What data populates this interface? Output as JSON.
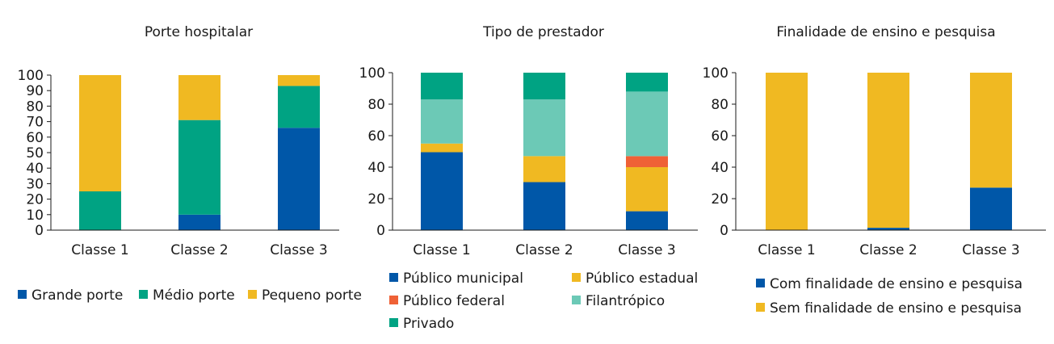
{
  "colors": {
    "grande": "#0057a8",
    "medio": "#00a383",
    "pequeno": "#f0b922",
    "municipal": "#0057a8",
    "estadual": "#f0b922",
    "federal": "#ef6136",
    "filantropico": "#6cc9b6",
    "privado": "#00a383",
    "com_ensino": "#0057a8",
    "sem_ensino": "#f0b922"
  },
  "chart_data": [
    {
      "type": "bar",
      "stacked": true,
      "title": "Porte hospitalar",
      "categories": [
        "Classe 1",
        "Classe 2",
        "Classe 3"
      ],
      "ylim": [
        0,
        100
      ],
      "yticks": [
        "0",
        "10",
        "20",
        "30",
        "40",
        "50",
        "60",
        "70",
        "80",
        "90",
        "100"
      ],
      "legend_position": "bottom",
      "series": [
        {
          "name": "Grande porte",
          "color_key": "grande",
          "values": [
            0,
            10,
            66
          ]
        },
        {
          "name": "Médio porte",
          "color_key": "medio",
          "values": [
            25,
            61,
            27
          ]
        },
        {
          "name": "Pequeno porte",
          "color_key": "pequeno",
          "values": [
            75,
            29,
            7
          ]
        }
      ]
    },
    {
      "type": "bar",
      "stacked": true,
      "title": "Tipo de prestador",
      "categories": [
        "Classe 1",
        "Classe 2",
        "Classe 3"
      ],
      "ylim": [
        0,
        100
      ],
      "yticks": [
        "0",
        "20",
        "40",
        "60",
        "80",
        "100"
      ],
      "legend_position": "bottom",
      "series": [
        {
          "name": "Público municipal",
          "color_key": "municipal",
          "values": [
            49.5,
            30.5,
            12
          ]
        },
        {
          "name": "Público estadual",
          "color_key": "estadual",
          "values": [
            5.5,
            16.5,
            28
          ]
        },
        {
          "name": "Público federal",
          "color_key": "federal",
          "values": [
            0,
            0,
            7
          ]
        },
        {
          "name": "Filantrópico",
          "color_key": "filantropico",
          "values": [
            28,
            36,
            41
          ]
        },
        {
          "name": "Privado",
          "color_key": "privado",
          "values": [
            17,
            17,
            12
          ]
        }
      ]
    },
    {
      "type": "bar",
      "stacked": true,
      "title": "Finalidade de ensino e pesquisa",
      "categories": [
        "Classe 1",
        "Classe 2",
        "Classe 3"
      ],
      "ylim": [
        0,
        100
      ],
      "yticks": [
        "0",
        "20",
        "40",
        "60",
        "80",
        "100"
      ],
      "legend_position": "bottom",
      "series": [
        {
          "name": "Com finalidade de ensino e pesquisa",
          "color_key": "com_ensino",
          "values": [
            0,
            1.5,
            27
          ]
        },
        {
          "name": "Sem finalidade de ensino e pesquisa",
          "color_key": "sem_ensino",
          "values": [
            100,
            98.5,
            73
          ]
        }
      ]
    }
  ]
}
